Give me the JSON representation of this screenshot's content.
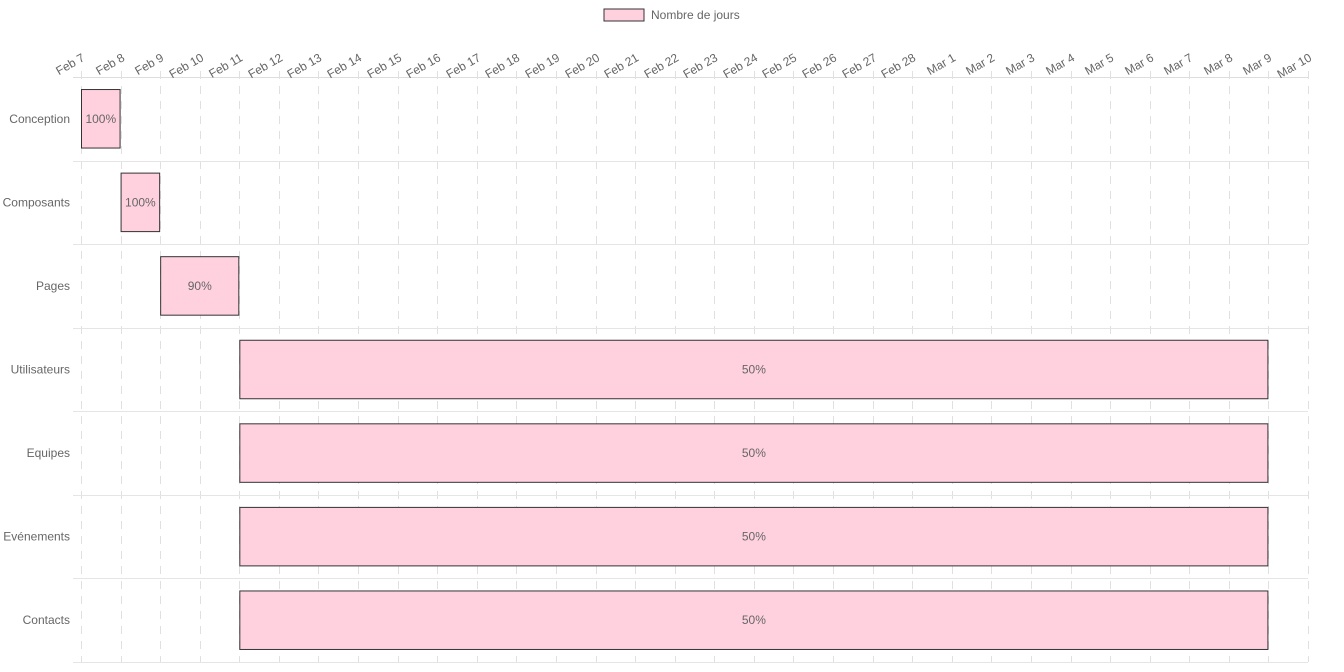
{
  "chart_data": {
    "type": "bar",
    "orientation": "horizontal",
    "subtype": "gantt",
    "legend": {
      "position": "top",
      "entries": [
        "Nombre de jours"
      ]
    },
    "series": [
      {
        "name": "Nombre de jours",
        "color": "#ffd1df",
        "border_color": "#333333"
      }
    ],
    "categories": [
      "Conception",
      "Composants",
      "Pages",
      "Utilisateurs",
      "Equipes",
      "Evénements",
      "Contacts"
    ],
    "tasks": [
      {
        "name": "Conception",
        "start": "2021-02-07",
        "end": "2021-02-08",
        "label": "100%"
      },
      {
        "name": "Composants",
        "start": "2021-02-08",
        "end": "2021-02-09",
        "label": "100%"
      },
      {
        "name": "Pages",
        "start": "2021-02-09",
        "end": "2021-02-11",
        "label": "90%"
      },
      {
        "name": "Utilisateurs",
        "start": "2021-02-11",
        "end": "2021-03-09",
        "label": "50%"
      },
      {
        "name": "Equipes",
        "start": "2021-02-11",
        "end": "2021-03-09",
        "label": "50%"
      },
      {
        "name": "Evénements",
        "start": "2021-02-11",
        "end": "2021-03-09",
        "label": "50%"
      },
      {
        "name": "Contacts",
        "start": "2021-02-11",
        "end": "2021-03-09",
        "label": "50%"
      }
    ],
    "x_axis": {
      "position": "top",
      "range": [
        "2021-02-07",
        "2021-03-10"
      ],
      "tick_labels": [
        "Feb 7",
        "Feb 8",
        "Feb 9",
        "Feb 10",
        "Feb 11",
        "Feb 12",
        "Feb 13",
        "Feb 14",
        "Feb 15",
        "Feb 16",
        "Feb 17",
        "Feb 18",
        "Feb 19",
        "Feb 20",
        "Feb 21",
        "Feb 22",
        "Feb 23",
        "Feb 24",
        "Feb 25",
        "Feb 26",
        "Feb 27",
        "Feb 28",
        "Mar 1",
        "Mar 2",
        "Mar 3",
        "Mar 4",
        "Mar 5",
        "Mar 6",
        "Mar 7",
        "Mar 8",
        "Mar 9",
        "Mar 10"
      ],
      "grid": true,
      "grid_style": "dashed"
    },
    "y_axis": {
      "grid": true
    },
    "title": "",
    "xlabel": "",
    "ylabel": ""
  }
}
